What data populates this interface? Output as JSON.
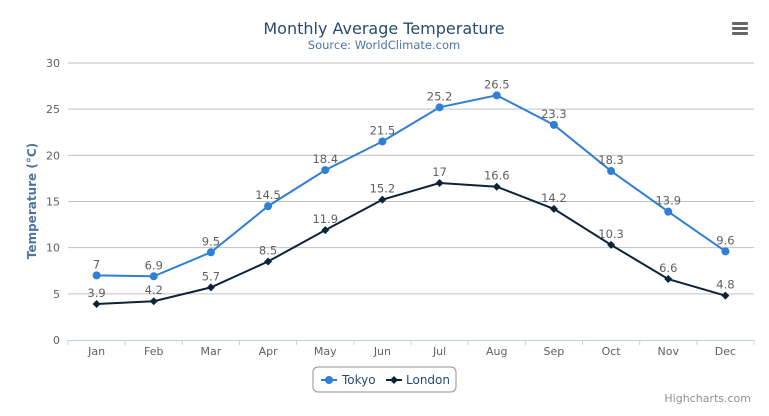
{
  "chart_data": {
    "type": "line",
    "title": "Monthly Average Temperature",
    "subtitle": "Source: WorldClimate.com",
    "xlabel": "",
    "ylabel": "Temperature (°C)",
    "categories": [
      "Jan",
      "Feb",
      "Mar",
      "Apr",
      "May",
      "Jun",
      "Jul",
      "Aug",
      "Sep",
      "Oct",
      "Nov",
      "Dec"
    ],
    "ylim": [
      0,
      30
    ],
    "yticks": [
      0,
      5,
      10,
      15,
      20,
      25,
      30
    ],
    "grid": true,
    "legend_position": "bottom-center",
    "data_labels": true,
    "series": [
      {
        "name": "Tokyo",
        "color": "#2f7ed8",
        "marker": "circle",
        "values": [
          7,
          6.9,
          9.5,
          14.5,
          18.4,
          21.5,
          25.2,
          26.5,
          23.3,
          18.3,
          13.9,
          9.6
        ]
      },
      {
        "name": "London",
        "color": "#0d233a",
        "marker": "diamond",
        "values": [
          3.9,
          4.2,
          5.7,
          8.5,
          11.9,
          15.2,
          17,
          16.6,
          14.2,
          10.3,
          6.6,
          4.8
        ]
      }
    ]
  },
  "menu_icon": "hamburger-menu-icon",
  "credits": "Highcharts.com"
}
